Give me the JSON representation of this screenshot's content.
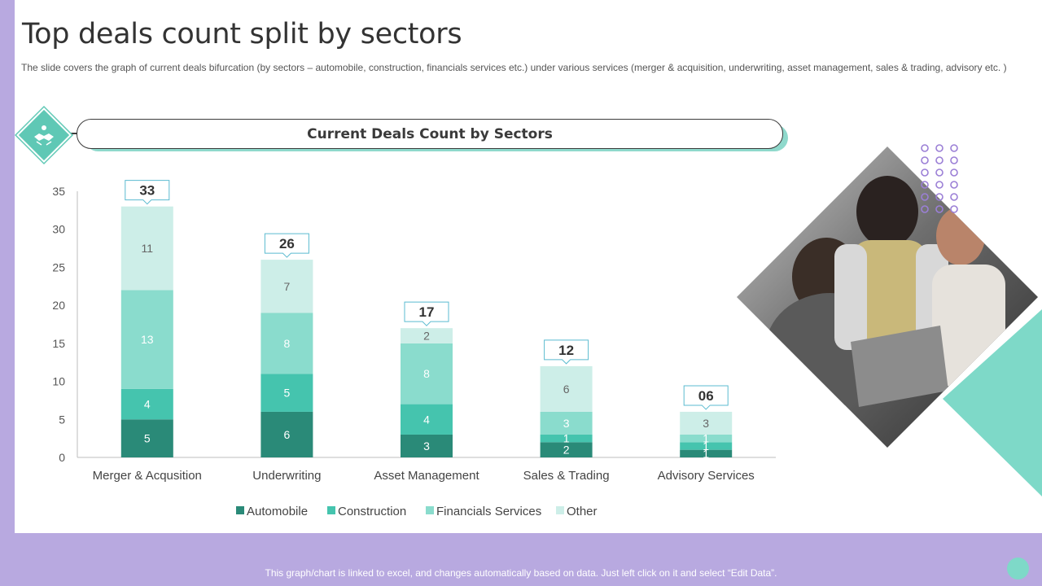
{
  "slide": {
    "title": "Top deals count split by sectors",
    "subtitle": "The slide covers the graph of current deals bifurcation (by sectors – automobile, construction, financials services etc.) under various services (merger & acquisition, underwriting, asset management, sales & trading, advisory etc. )",
    "banner_title": "Current Deals Count by Sectors",
    "footer_note": "This graph/chart is linked to excel, and changes automatically based on data. Just left click on it and select “Edit Data”."
  },
  "chart_data": {
    "type": "bar",
    "stacked": true,
    "title": "Current Deals Count by Sectors",
    "categories": [
      "Merger & Acqusition",
      "Underwriting",
      "Asset Management",
      "Sales & Trading",
      "Advisory Services"
    ],
    "series": [
      {
        "name": "Automobile",
        "values": [
          5,
          6,
          3,
          2,
          1
        ],
        "color": "#2a8a78"
      },
      {
        "name": "Construction",
        "values": [
          4,
          5,
          4,
          1,
          1
        ],
        "color": "#45c4ae"
      },
      {
        "name": "Financials Services",
        "values": [
          13,
          8,
          8,
          3,
          1
        ],
        "color": "#8adccd"
      },
      {
        "name": "Other",
        "values": [
          11,
          7,
          2,
          6,
          3
        ],
        "color": "#cdeee8"
      }
    ],
    "segment_labels": [
      [
        "5",
        "4",
        "13",
        "11"
      ],
      [
        "6",
        "5",
        "8",
        "7"
      ],
      [
        "3",
        "4",
        "8",
        "2"
      ],
      [
        "2",
        "1",
        "3",
        "6"
      ],
      [
        "1",
        "1",
        "1",
        "3"
      ]
    ],
    "totals": [
      "33",
      "26",
      "17",
      "12",
      "06"
    ],
    "yticks": [
      "0",
      "5",
      "10",
      "15",
      "20",
      "25",
      "30",
      "35"
    ],
    "ylim": [
      0,
      35
    ],
    "legend_position": "bottom",
    "xlabel": "",
    "ylabel": ""
  },
  "colors": {
    "accent_purple": "#b8a9e0",
    "accent_teal": "#7ed9c8",
    "dot_purple": "#9b7fd6"
  },
  "icons": {
    "banner_icon": "handshake-icon"
  }
}
